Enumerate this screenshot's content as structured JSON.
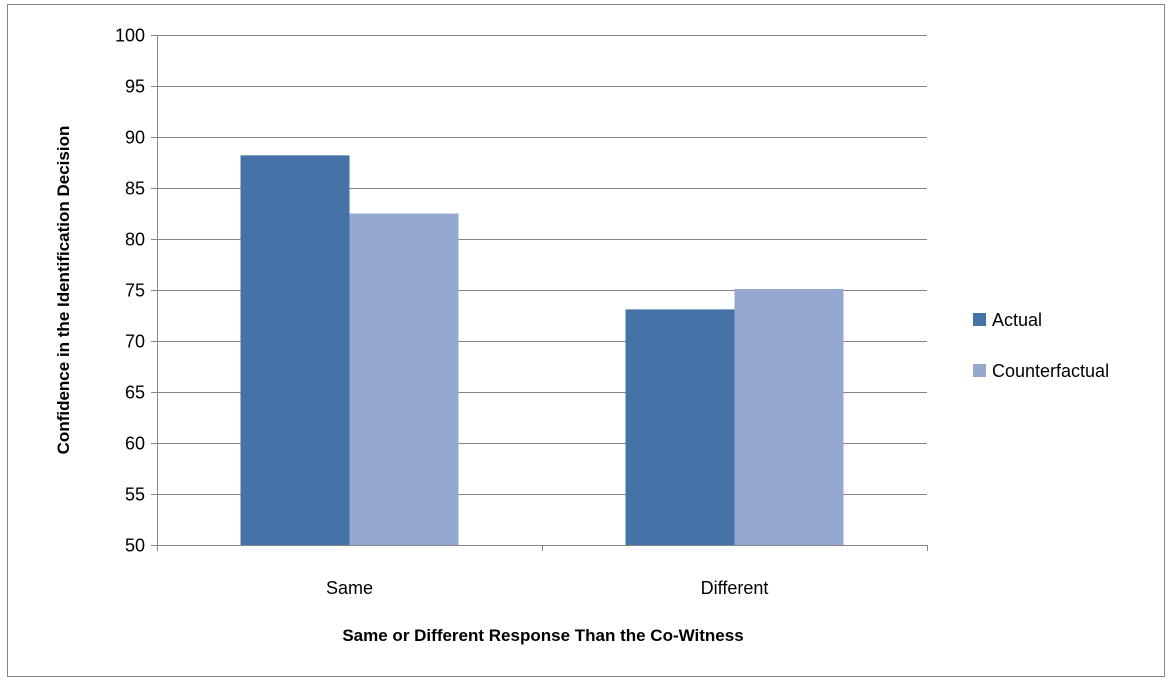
{
  "chart_data": {
    "type": "bar",
    "title": "",
    "xlabel": "Same or Different Response Than the Co-Witness",
    "ylabel": "Confidence in the Identification Decision",
    "categories": [
      "Same",
      "Different"
    ],
    "series": [
      {
        "name": "Actual",
        "color": "#4572A7",
        "values": [
          88.2,
          73.1
        ]
      },
      {
        "name": "Counterfactual",
        "color": "#95A9D0",
        "values": [
          82.5,
          75.1
        ]
      }
    ],
    "ylim": [
      50,
      100
    ],
    "yticks": [
      50,
      55,
      60,
      65,
      70,
      75,
      80,
      85,
      90,
      95,
      100
    ],
    "grid": true,
    "legend_position": "right"
  }
}
